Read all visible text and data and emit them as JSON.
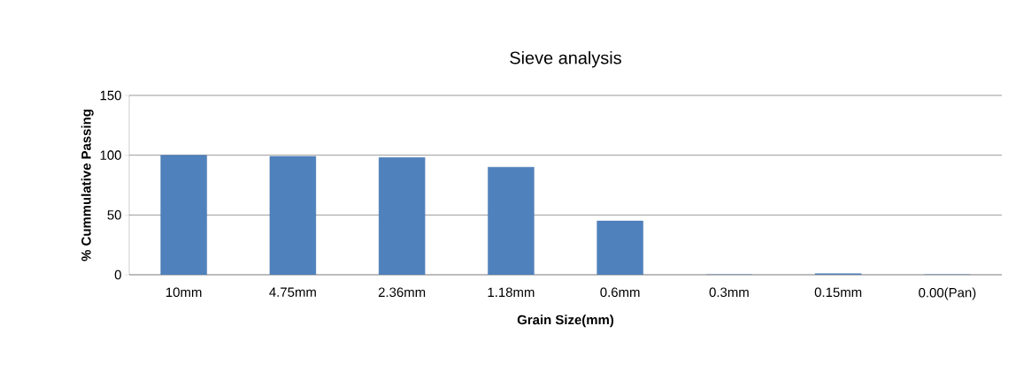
{
  "chart_data": {
    "type": "bar",
    "title": "Sieve analysis",
    "xlabel": "Grain Size(mm)",
    "ylabel": "% Cummulative Passing",
    "categories": [
      "10mm",
      "4.75mm",
      "2.36mm",
      "1.18mm",
      "0.6mm",
      "0.3mm",
      "0.15mm",
      "0.00(Pan)"
    ],
    "values": [
      100,
      99,
      98,
      90,
      45,
      0,
      1,
      0
    ],
    "color": "#4f81bd",
    "ylim": [
      0,
      150
    ],
    "yticks": [
      0,
      50,
      100,
      150
    ],
    "grid": "y"
  }
}
